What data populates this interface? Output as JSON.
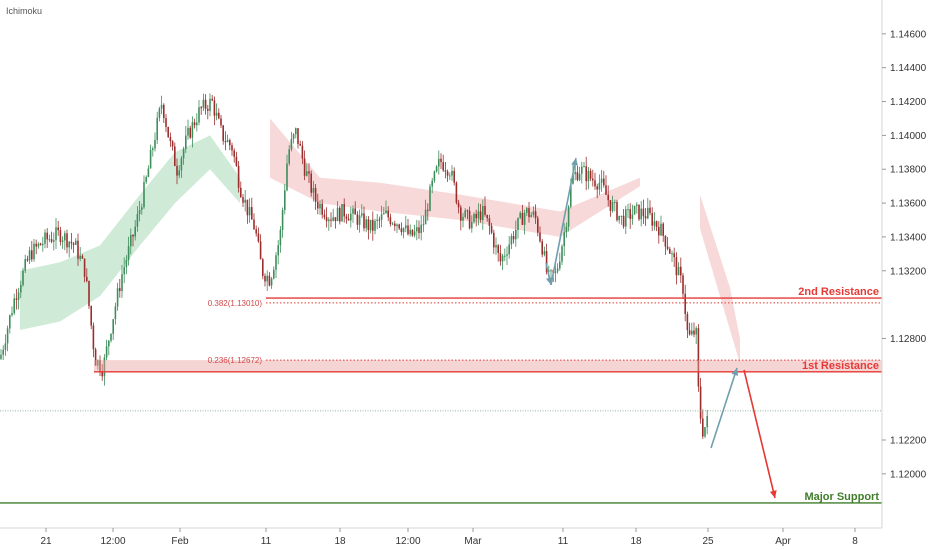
{
  "indicator_label": "Ichimoku",
  "colors": {
    "bull": "#3e8e5b",
    "bear": "#9c2d2d",
    "resistance": "#e53935",
    "support": "#3f7d2a",
    "current": "#6e9a7c",
    "arrow_up": "#6f9fae",
    "arrow_down": "#e53935",
    "cloud_green": "#a9d8b8",
    "cloud_red": "#f2b9b9"
  },
  "chart_data": {
    "type": "candlestick",
    "title": "",
    "xlabel": "",
    "ylabel": "",
    "ylim": [
      1.1168,
      1.148
    ],
    "y_ticks": [
      "1.14600",
      "1.14400",
      "1.14200",
      "1.14000",
      "1.13800",
      "1.13600",
      "1.13400",
      "1.13200",
      "1.12800",
      "1.12200",
      "1.12000"
    ],
    "x_ticks": [
      "21",
      "12:00",
      "Feb",
      "11",
      "18",
      "12:00",
      "Mar",
      "11",
      "18",
      "25",
      "Apr",
      "8"
    ],
    "grid": false,
    "price_path": [
      [
        0,
        1.1268
      ],
      [
        15,
        1.1305
      ],
      [
        30,
        1.133
      ],
      [
        45,
        1.1338
      ],
      [
        60,
        1.1342
      ],
      [
        75,
        1.1335
      ],
      [
        85,
        1.132
      ],
      [
        95,
        1.1268
      ],
      [
        103,
        1.1262
      ],
      [
        112,
        1.129
      ],
      [
        122,
        1.1318
      ],
      [
        135,
        1.1345
      ],
      [
        145,
        1.137
      ],
      [
        155,
        1.14
      ],
      [
        162,
        1.142
      ],
      [
        170,
        1.1395
      ],
      [
        177,
        1.138
      ],
      [
        188,
        1.14
      ],
      [
        200,
        1.1415
      ],
      [
        212,
        1.142
      ],
      [
        222,
        1.14
      ],
      [
        232,
        1.1393
      ],
      [
        240,
        1.137
      ],
      [
        248,
        1.1355
      ],
      [
        255,
        1.1345
      ],
      [
        262,
        1.132
      ],
      [
        270,
        1.1315
      ],
      [
        280,
        1.134
      ],
      [
        288,
        1.139
      ],
      [
        296,
        1.1402
      ],
      [
        305,
        1.138
      ],
      [
        315,
        1.1362
      ],
      [
        330,
        1.1352
      ],
      [
        345,
        1.1355
      ],
      [
        360,
        1.135
      ],
      [
        372,
        1.1345
      ],
      [
        385,
        1.1353
      ],
      [
        400,
        1.1348
      ],
      [
        410,
        1.134
      ],
      [
        422,
        1.1345
      ],
      [
        432,
        1.137
      ],
      [
        440,
        1.1385
      ],
      [
        450,
        1.138
      ],
      [
        460,
        1.1355
      ],
      [
        472,
        1.1348
      ],
      [
        482,
        1.1355
      ],
      [
        490,
        1.1345
      ],
      [
        500,
        1.1325
      ],
      [
        512,
        1.134
      ],
      [
        525,
        1.1355
      ],
      [
        535,
        1.1352
      ],
      [
        542,
        1.1335
      ],
      [
        548,
        1.1315
      ],
      [
        556,
        1.1318
      ],
      [
        565,
        1.1345
      ],
      [
        572,
        1.1375
      ],
      [
        580,
        1.138
      ],
      [
        590,
        1.1375
      ],
      [
        600,
        1.1372
      ],
      [
        610,
        1.136
      ],
      [
        622,
        1.135
      ],
      [
        635,
        1.1355
      ],
      [
        648,
        1.1353
      ],
      [
        660,
        1.1345
      ],
      [
        668,
        1.1335
      ],
      [
        676,
        1.1322
      ],
      [
        683,
        1.131
      ],
      [
        688,
        1.128
      ],
      [
        692,
        1.1282
      ],
      [
        696,
        1.1285
      ],
      [
        699,
        1.124
      ],
      [
        703,
        1.1225
      ],
      [
        708,
        1.1232
      ]
    ],
    "ichimoku_cloud_green": [
      [
        20,
        1.1285,
        1.132
      ],
      [
        60,
        1.129,
        1.1325
      ],
      [
        100,
        1.1305,
        1.1335
      ],
      [
        140,
        1.1335,
        1.1365
      ],
      [
        175,
        1.136,
        1.139
      ],
      [
        210,
        1.138,
        1.14
      ],
      [
        240,
        1.136,
        1.1375
      ]
    ],
    "ichimoku_cloud_red": [
      [
        0,
        1.1265,
        1.1275
      ],
      [
        270,
        1.1375,
        1.141
      ],
      [
        320,
        1.136,
        1.1375
      ],
      [
        380,
        1.1355,
        1.1372
      ],
      [
        460,
        1.135,
        1.1365
      ],
      [
        560,
        1.134,
        1.1355
      ],
      [
        640,
        1.137,
        1.1375
      ],
      [
        700,
        1.1345,
        1.1365
      ],
      [
        730,
        1.1285,
        1.131
      ],
      [
        740,
        1.1265,
        1.128
      ]
    ],
    "fib_levels": [
      {
        "label": "0.382(1.13010)",
        "value": 1.1301
      },
      {
        "label": "0.236(1.12672)",
        "value": 1.12672
      }
    ],
    "levels": [
      {
        "name": "2nd Resistance",
        "value": 1.13039,
        "tag": "1.13039",
        "kind": "resistance"
      },
      {
        "name": "1st Resistance",
        "value": 1.12603,
        "tag": "1.12603",
        "kind": "resistance"
      },
      {
        "name": "Major Support",
        "value": 1.11828,
        "tag": "1.11828",
        "kind": "support"
      }
    ],
    "current_price": {
      "value": 1.12372,
      "tag": "1.12372"
    },
    "resistance_zone": {
      "top": 1.12672,
      "bottom": 1.12603
    }
  }
}
